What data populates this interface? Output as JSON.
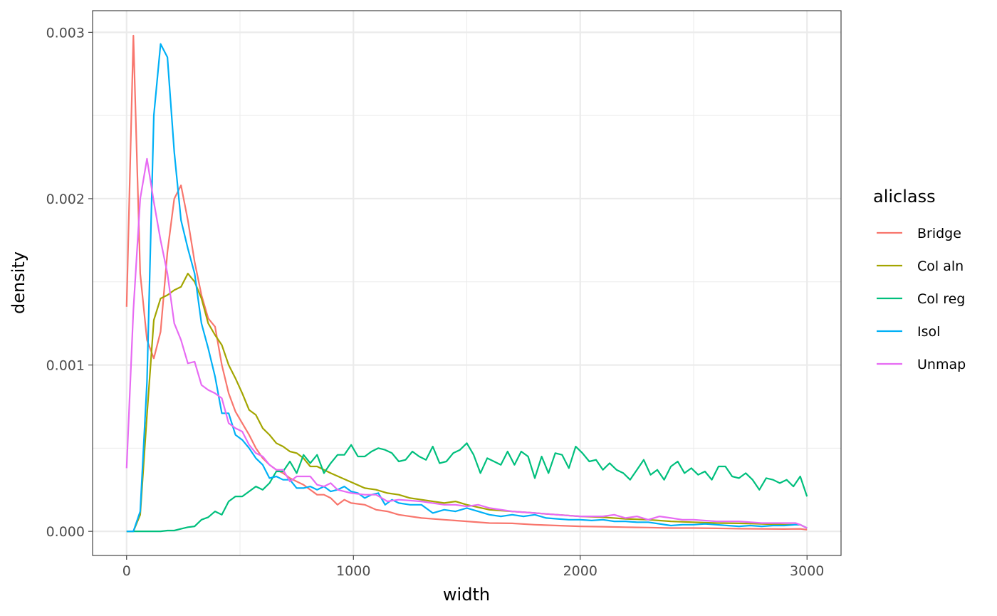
{
  "chart_data": {
    "type": "line",
    "title": "",
    "xlabel": "width",
    "ylabel": "density",
    "xlim": [
      -150,
      3150
    ],
    "ylim": [
      -0.000145,
      0.00313
    ],
    "x_ticks": [
      0,
      1000,
      2000,
      3000
    ],
    "x_tick_labels": [
      "0",
      "1000",
      "2000",
      "3000"
    ],
    "y_ticks": [
      0,
      0.001,
      0.002,
      0.003
    ],
    "y_tick_labels": [
      "0.000",
      "0.001",
      "0.002",
      "0.003"
    ],
    "grid": true,
    "legend": {
      "title": "aliclass",
      "position": "right"
    },
    "series": [
      {
        "name": "Bridge",
        "color": "#F8766D",
        "x": [
          0,
          30,
          60,
          90,
          120,
          150,
          180,
          210,
          240,
          270,
          300,
          330,
          360,
          390,
          420,
          450,
          480,
          510,
          540,
          570,
          600,
          630,
          660,
          690,
          720,
          750,
          780,
          810,
          840,
          870,
          900,
          930,
          960,
          990,
          1050,
          1100,
          1150,
          1200,
          1300,
          1400,
          1500,
          1600,
          1700,
          1800,
          1900,
          2000,
          2100,
          2200,
          2300,
          2400,
          2500,
          2600,
          2700,
          2800,
          2900,
          2970,
          3000
        ],
        "y": [
          0.00135,
          0.00298,
          0.00155,
          0.00115,
          0.00104,
          0.0012,
          0.00168,
          0.002,
          0.00208,
          0.00187,
          0.00162,
          0.00142,
          0.00128,
          0.00123,
          0.001,
          0.00083,
          0.00072,
          0.00065,
          0.00058,
          0.0005,
          0.00044,
          0.0004,
          0.00037,
          0.00035,
          0.00032,
          0.0003,
          0.00028,
          0.00025,
          0.00022,
          0.00022,
          0.0002,
          0.00016,
          0.00019,
          0.00017,
          0.00016,
          0.00013,
          0.00012,
          0.0001,
          8e-05,
          7e-05,
          6e-05,
          5e-05,
          4.8e-05,
          4e-05,
          3.5e-05,
          3e-05,
          2.8e-05,
          2.5e-05,
          2.3e-05,
          2e-05,
          2e-05,
          1.8e-05,
          1.6e-05,
          1.5e-05,
          1.4e-05,
          1.5e-05,
          1e-05
        ]
      },
      {
        "name": "Col aln",
        "color": "#A3A500",
        "x": [
          0,
          30,
          60,
          90,
          120,
          150,
          180,
          210,
          240,
          270,
          300,
          330,
          360,
          390,
          420,
          450,
          480,
          510,
          540,
          570,
          600,
          630,
          660,
          690,
          720,
          750,
          780,
          810,
          840,
          870,
          900,
          950,
          1000,
          1050,
          1100,
          1150,
          1200,
          1250,
          1300,
          1400,
          1450,
          1500,
          1600,
          1700,
          1800,
          1900,
          2000,
          2100,
          2200,
          2300,
          2400,
          2500,
          2600,
          2700,
          2800,
          2900,
          2970,
          3000
        ],
        "y": [
          0,
          0,
          0.0001,
          0.0007,
          0.00127,
          0.0014,
          0.00142,
          0.00145,
          0.00147,
          0.00155,
          0.0015,
          0.0014,
          0.00125,
          0.00118,
          0.00112,
          0.001,
          0.00092,
          0.00083,
          0.00073,
          0.0007,
          0.00062,
          0.00058,
          0.00053,
          0.00051,
          0.00048,
          0.00047,
          0.00044,
          0.00039,
          0.00039,
          0.00037,
          0.00035,
          0.00032,
          0.00029,
          0.00026,
          0.00025,
          0.00023,
          0.00022,
          0.0002,
          0.00019,
          0.00017,
          0.00018,
          0.00016,
          0.00013,
          0.00012,
          0.00011,
          0.0001,
          9e-05,
          8.5e-05,
          7.5e-05,
          7e-05,
          6e-05,
          5.5e-05,
          5e-05,
          4.8e-05,
          4.5e-05,
          4e-05,
          4e-05,
          2e-05
        ]
      },
      {
        "name": "Col reg",
        "color": "#00BF7D",
        "x": [
          0,
          30,
          60,
          90,
          120,
          150,
          180,
          210,
          240,
          270,
          300,
          330,
          360,
          390,
          420,
          450,
          480,
          510,
          540,
          570,
          600,
          630,
          660,
          690,
          720,
          750,
          780,
          810,
          840,
          870,
          900,
          930,
          960,
          990,
          1020,
          1050,
          1080,
          1110,
          1140,
          1170,
          1200,
          1230,
          1260,
          1290,
          1320,
          1350,
          1380,
          1410,
          1440,
          1470,
          1500,
          1530,
          1560,
          1590,
          1620,
          1650,
          1680,
          1710,
          1740,
          1770,
          1800,
          1830,
          1860,
          1890,
          1920,
          1950,
          1980,
          2010,
          2040,
          2070,
          2100,
          2130,
          2160,
          2190,
          2220,
          2250,
          2280,
          2310,
          2340,
          2370,
          2400,
          2430,
          2460,
          2490,
          2520,
          2550,
          2580,
          2610,
          2640,
          2670,
          2700,
          2730,
          2760,
          2790,
          2820,
          2850,
          2880,
          2910,
          2940,
          2970,
          3000
        ],
        "y": [
          0,
          0,
          0,
          0,
          0,
          0,
          5e-06,
          5e-06,
          1.5e-05,
          2.5e-05,
          3e-05,
          7e-05,
          8.5e-05,
          0.00012,
          0.0001,
          0.00018,
          0.00021,
          0.00021,
          0.00024,
          0.00027,
          0.00025,
          0.00029,
          0.00036,
          0.00036,
          0.00042,
          0.00035,
          0.00046,
          0.00041,
          0.00046,
          0.00035,
          0.00041,
          0.00046,
          0.00046,
          0.00052,
          0.00045,
          0.00045,
          0.00048,
          0.0005,
          0.00049,
          0.00047,
          0.00042,
          0.00043,
          0.00048,
          0.00045,
          0.00043,
          0.00051,
          0.00041,
          0.00042,
          0.00047,
          0.00049,
          0.00053,
          0.00046,
          0.00035,
          0.00044,
          0.00042,
          0.0004,
          0.00048,
          0.0004,
          0.00048,
          0.00045,
          0.00032,
          0.00045,
          0.00035,
          0.00047,
          0.00046,
          0.00038,
          0.00051,
          0.00047,
          0.00042,
          0.00043,
          0.00037,
          0.00041,
          0.00037,
          0.00035,
          0.00031,
          0.00037,
          0.00043,
          0.00034,
          0.00037,
          0.00031,
          0.00039,
          0.00042,
          0.00035,
          0.00038,
          0.00034,
          0.00036,
          0.00031,
          0.00039,
          0.00039,
          0.00033,
          0.00032,
          0.00035,
          0.00031,
          0.00025,
          0.00032,
          0.00031,
          0.00029,
          0.00031,
          0.00027,
          0.00033,
          0.00021
        ]
      },
      {
        "name": "Isol",
        "color": "#00B0F6",
        "x": [
          0,
          30,
          60,
          90,
          120,
          150,
          180,
          210,
          240,
          270,
          300,
          330,
          360,
          390,
          420,
          450,
          480,
          510,
          540,
          570,
          600,
          630,
          660,
          690,
          720,
          750,
          780,
          810,
          840,
          870,
          900,
          930,
          960,
          990,
          1020,
          1050,
          1080,
          1110,
          1140,
          1170,
          1200,
          1250,
          1300,
          1350,
          1400,
          1450,
          1500,
          1550,
          1600,
          1650,
          1700,
          1750,
          1800,
          1850,
          1900,
          1950,
          2000,
          2050,
          2100,
          2150,
          2200,
          2250,
          2300,
          2350,
          2400,
          2450,
          2500,
          2550,
          2600,
          2650,
          2700,
          2750,
          2800,
          2850,
          2900,
          2950,
          2970,
          3000
        ],
        "y": [
          0,
          0,
          0.00012,
          0.0009,
          0.0025,
          0.00293,
          0.00285,
          0.00228,
          0.00187,
          0.0017,
          0.00155,
          0.00125,
          0.0011,
          0.00093,
          0.00071,
          0.00071,
          0.00058,
          0.00055,
          0.0005,
          0.00044,
          0.0004,
          0.00032,
          0.00033,
          0.00031,
          0.00031,
          0.00026,
          0.00026,
          0.00027,
          0.00025,
          0.00027,
          0.00024,
          0.00025,
          0.00027,
          0.00024,
          0.00023,
          0.0002,
          0.00022,
          0.00023,
          0.00016,
          0.00019,
          0.00017,
          0.00016,
          0.00016,
          0.00011,
          0.00013,
          0.00012,
          0.00014,
          0.00012,
          0.0001,
          9e-05,
          0.0001,
          9e-05,
          0.0001,
          8e-05,
          7.5e-05,
          7e-05,
          7e-05,
          6.5e-05,
          7e-05,
          6e-05,
          6e-05,
          5.5e-05,
          5.5e-05,
          4.5e-05,
          3.5e-05,
          4e-05,
          4e-05,
          4.5e-05,
          4e-05,
          3.5e-05,
          3e-05,
          3.5e-05,
          3e-05,
          3.5e-05,
          3.5e-05,
          4e-05,
          4e-05,
          2e-05
        ]
      },
      {
        "name": "Unmap",
        "color": "#E76BF3",
        "x": [
          0,
          30,
          60,
          90,
          120,
          150,
          180,
          210,
          240,
          270,
          300,
          330,
          360,
          390,
          420,
          450,
          480,
          510,
          540,
          570,
          600,
          630,
          660,
          690,
          720,
          750,
          780,
          810,
          840,
          870,
          900,
          930,
          960,
          990,
          1050,
          1100,
          1150,
          1200,
          1300,
          1400,
          1450,
          1500,
          1550,
          1600,
          1700,
          1800,
          1900,
          2000,
          2100,
          2150,
          2200,
          2250,
          2300,
          2350,
          2400,
          2450,
          2500,
          2600,
          2700,
          2800,
          2900,
          2950,
          2970,
          3000
        ],
        "y": [
          0.00038,
          0.00133,
          0.002,
          0.00224,
          0.00198,
          0.00175,
          0.00155,
          0.00125,
          0.00115,
          0.00101,
          0.00102,
          0.00088,
          0.00085,
          0.00083,
          0.0008,
          0.00065,
          0.00062,
          0.0006,
          0.00052,
          0.00047,
          0.00045,
          0.0004,
          0.00037,
          0.00037,
          0.0003,
          0.00033,
          0.00033,
          0.00033,
          0.00028,
          0.00027,
          0.00029,
          0.00025,
          0.00024,
          0.00023,
          0.00022,
          0.00022,
          0.00018,
          0.00019,
          0.00018,
          0.00016,
          0.00016,
          0.00015,
          0.00016,
          0.00014,
          0.00012,
          0.00011,
          0.0001,
          9e-05,
          9e-05,
          0.0001,
          8e-05,
          9e-05,
          7e-05,
          9e-05,
          8e-05,
          7e-05,
          7e-05,
          6e-05,
          6e-05,
          5e-05,
          5e-05,
          5e-05,
          4e-05,
          2e-05
        ]
      }
    ]
  }
}
